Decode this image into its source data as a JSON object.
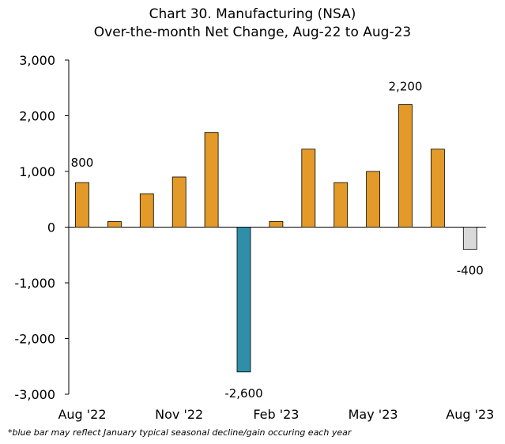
{
  "chart_data": {
    "type": "bar",
    "title": "Chart 30. Manufacturing (NSA)",
    "subtitle": "Over-the-month Net Change, Aug-22 to Aug-23",
    "categories": [
      "Aug '22",
      "Sep '22",
      "Oct '22",
      "Nov '22",
      "Dec '22",
      "Jan '23",
      "Feb '23",
      "Mar '23",
      "Apr '23",
      "May '23",
      "Jun '23",
      "Jul '23",
      "Aug '23"
    ],
    "values": [
      800,
      100,
      600,
      900,
      1700,
      -2600,
      100,
      1400,
      800,
      1000,
      2200,
      1400,
      -400
    ],
    "x_tick_labels": [
      "Aug '22",
      "Nov '22",
      "Feb '23",
      "May '23",
      "Aug '23"
    ],
    "y_tick_labels": [
      "3,000",
      "2,000",
      "1,000",
      "0",
      "-1,000",
      "-2,000",
      "-3,000"
    ],
    "ylim": [
      -3000,
      3000
    ],
    "ytick_step": 1000,
    "data_labels": [
      {
        "category": "Aug '22",
        "text": "800"
      },
      {
        "category": "Jan '23",
        "text": "-2,600"
      },
      {
        "category": "Jun '23",
        "text": "2,200"
      },
      {
        "category": "Aug '23",
        "text": "-400"
      }
    ],
    "bar_colors": {
      "default": "#E39A29",
      "january": "#2F8FA8",
      "latest": "#D9D9D9"
    },
    "grid": false,
    "legend": "none",
    "footnote": "*blue bar may reflect January typical seasonal decline/gain occuring each year"
  }
}
